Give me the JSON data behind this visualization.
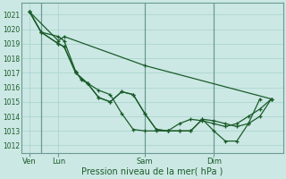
{
  "xlabel": "Pression niveau de la mer( hPa )",
  "bg_color": "#cce8e4",
  "grid_color": "#b0d8d2",
  "line_color": "#1a5c2a",
  "ylim": [
    1011.5,
    1021.8
  ],
  "yticks": [
    1012,
    1013,
    1014,
    1015,
    1016,
    1017,
    1018,
    1019,
    1020,
    1021
  ],
  "day_labels": [
    "Ven",
    "Lun",
    "Sam",
    "Dim"
  ],
  "day_positions": [
    0.5,
    3.0,
    10.5,
    16.5
  ],
  "vline_positions": [
    1.5,
    10.5,
    16.5
  ],
  "xlim": [
    -0.2,
    22.5
  ],
  "series_x": [
    [
      0.5,
      1.5,
      3.0,
      3.5,
      4.5,
      5.5,
      6.5,
      7.5,
      8.5,
      9.5,
      10.5,
      11.5,
      12.5,
      13.5,
      14.5,
      15.5,
      16.5,
      17.5,
      18.5,
      19.5,
      20.5,
      21.5
    ],
    [
      0.5,
      1.5,
      3.0,
      3.5,
      4.5,
      5.5,
      6.5,
      7.5,
      8.5,
      9.5,
      10.5,
      11.5,
      12.5,
      13.5,
      14.5,
      15.5,
      16.5,
      17.5,
      18.5,
      19.5,
      20.5
    ],
    [
      0.5,
      1.5,
      3.0,
      3.5,
      4.5,
      5.0,
      5.5,
      6.5,
      7.5,
      8.5,
      9.5,
      10.5,
      11.5,
      12.5,
      13.5,
      14.5,
      15.5,
      16.5,
      17.5,
      18.5,
      19.5,
      20.5,
      21.5
    ],
    [
      0.5,
      3.0,
      3.5,
      10.5,
      21.5
    ]
  ],
  "series_y": [
    [
      1021.2,
      1019.8,
      1019.0,
      1018.8,
      1017.0,
      1016.3,
      1015.3,
      1015.0,
      1015.7,
      1015.5,
      1014.2,
      1013.1,
      1013.0,
      1013.0,
      1013.0,
      1013.8,
      1013.0,
      1012.3,
      1012.3,
      1013.5,
      1014.0,
      1015.2
    ],
    [
      1021.2,
      1019.8,
      1019.0,
      1018.8,
      1017.0,
      1016.3,
      1015.3,
      1015.0,
      1015.7,
      1015.5,
      1014.2,
      1013.1,
      1013.0,
      1013.0,
      1013.0,
      1013.8,
      1013.7,
      1013.5,
      1013.3,
      1013.5,
      1015.2
    ],
    [
      1021.2,
      1019.8,
      1019.5,
      1019.2,
      1017.1,
      1016.5,
      1016.3,
      1015.8,
      1015.5,
      1014.2,
      1013.1,
      1013.0,
      1013.0,
      1013.0,
      1013.5,
      1013.8,
      1013.7,
      1013.5,
      1013.3,
      1013.5,
      1014.0,
      1014.5,
      1015.2
    ],
    [
      1021.2,
      1019.2,
      1019.5,
      1017.5,
      1015.2
    ]
  ]
}
